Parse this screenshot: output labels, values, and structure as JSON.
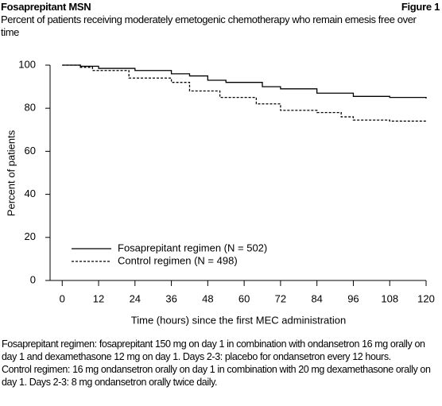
{
  "chart_data": {
    "type": "step-line",
    "header": "Fosaprepitant MSN",
    "figure_label": "Figure 1",
    "title": "Percent of patients receiving moderately emetogenic chemotherapy who remain emesis free over time",
    "xlabel": "Time (hours) since the first MEC administration",
    "ylabel": "Percent of patients",
    "xlim": [
      -4,
      120
    ],
    "xticks": [
      0,
      12,
      24,
      36,
      48,
      60,
      72,
      84,
      96,
      108,
      120
    ],
    "ylim": [
      0,
      100
    ],
    "yticks": [
      0,
      20,
      40,
      60,
      80,
      100
    ],
    "legend": "lower-left",
    "series": [
      {
        "name": "Fosaprepitant regimen (N = 502)",
        "color": "#000000",
        "dash": "solid",
        "x": [
          0,
          6,
          12,
          24,
          36,
          42,
          48,
          54,
          66,
          72,
          84,
          96,
          108,
          120
        ],
        "values": [
          100,
          99.5,
          98.5,
          97.5,
          96,
          95,
          93,
          92,
          90,
          89,
          87,
          85.5,
          85,
          84.5
        ]
      },
      {
        "name": "Control regimen (N = 498)",
        "color": "#000000",
        "dash": "dashed",
        "x": [
          0,
          6,
          10,
          22,
          36,
          42,
          52,
          64,
          72,
          84,
          92,
          96,
          108,
          120
        ],
        "values": [
          100,
          99,
          97.5,
          94,
          92,
          88,
          85,
          82,
          79,
          78,
          76,
          74.5,
          74,
          74
        ]
      }
    ],
    "notes": [
      "Fosaprepitant regimen: fosaprepitant 150 mg on day 1 in combination with ondansetron 16 mg orally on day 1 and dexamethasone 12 mg on day 1. Days 2-3: placebo for ondansetron every 12 hours.",
      "Control regimen: 16 mg ondansetron orally on day 1 in combination with 20 mg dexamethasone orally on day 1. Days 2-3: 8 mg ondansetron orally twice daily."
    ]
  }
}
